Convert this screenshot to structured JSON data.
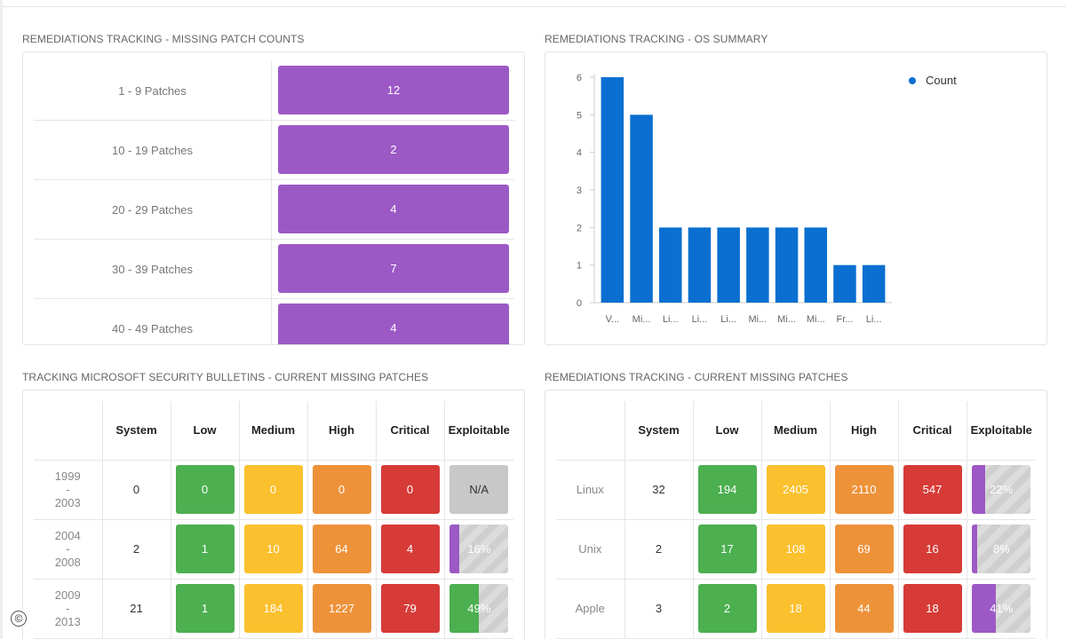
{
  "panels": {
    "patch_counts_title": "REMEDIATIONS TRACKING - MISSING PATCH COUNTS",
    "os_summary_title": "REMEDIATIONS TRACKING - OS SUMMARY",
    "ms_bulletins_title": "TRACKING MICROSOFT SECURITY BULLETINS - CURRENT MISSING PATCHES",
    "current_missing_title": "REMEDIATIONS TRACKING - CURRENT MISSING PATCHES"
  },
  "patch_counts": [
    {
      "label": "1 - 9 Patches",
      "value": "12"
    },
    {
      "label": "10 - 19 Patches",
      "value": "2"
    },
    {
      "label": "20 - 29 Patches",
      "value": "4"
    },
    {
      "label": "30 - 39 Patches",
      "value": "7"
    },
    {
      "label": "40 - 49 Patches",
      "value": "4"
    }
  ],
  "chart_data": {
    "type": "bar",
    "categories": [
      "V...",
      "Mi...",
      "Li...",
      "Li...",
      "Li...",
      "Mi...",
      "Mi...",
      "Mi...",
      "Fr...",
      "Li..."
    ],
    "series": [
      {
        "name": "Count",
        "values": [
          6,
          5,
          2,
          2,
          2,
          2,
          2,
          2,
          1,
          1
        ],
        "color": "#0a6fd0"
      }
    ],
    "yticks": [
      "0",
      "1",
      "2",
      "3",
      "4",
      "5",
      "6"
    ],
    "ylim": [
      0,
      6
    ],
    "legend_position": "top-right",
    "grid": false
  },
  "table_headers": [
    "System",
    "Low",
    "Medium",
    "High",
    "Critical",
    "Exploitable"
  ],
  "ms_table": [
    {
      "period": [
        "1999",
        "-",
        "2003"
      ],
      "system": "0",
      "low": "0",
      "medium": "0",
      "high": "0",
      "critical": "0",
      "exploitable": "N/A",
      "exploitable_pct": null,
      "fill_color": "#c8c8c8"
    },
    {
      "period": [
        "2004",
        "-",
        "2008"
      ],
      "system": "2",
      "low": "1",
      "medium": "10",
      "high": "64",
      "critical": "4",
      "exploitable": "16%",
      "exploitable_pct": 16,
      "fill_color": "#9c59c6"
    },
    {
      "period": [
        "2009",
        "-",
        "2013"
      ],
      "system": "21",
      "low": "1",
      "medium": "184",
      "high": "1227",
      "critical": "79",
      "exploitable": "49%",
      "exploitable_pct": 49,
      "fill_color": "#4caf50"
    }
  ],
  "rt_table": [
    {
      "os": "Linux",
      "system": "32",
      "low": "194",
      "medium": "2405",
      "high": "2110",
      "critical": "547",
      "exploitable": "22%",
      "exploitable_pct": 22,
      "fill_color": "#9c59c6"
    },
    {
      "os": "Unix",
      "system": "2",
      "low": "17",
      "medium": "108",
      "high": "69",
      "critical": "16",
      "exploitable": "8%",
      "exploitable_pct": 8,
      "fill_color": "#9c59c6"
    },
    {
      "os": "Apple",
      "system": "3",
      "low": "2",
      "medium": "18",
      "high": "44",
      "critical": "18",
      "exploitable": "41%",
      "exploitable_pct": 41,
      "fill_color": "#9c59c6"
    }
  ],
  "footer": {
    "copyright_symbol": "©"
  }
}
